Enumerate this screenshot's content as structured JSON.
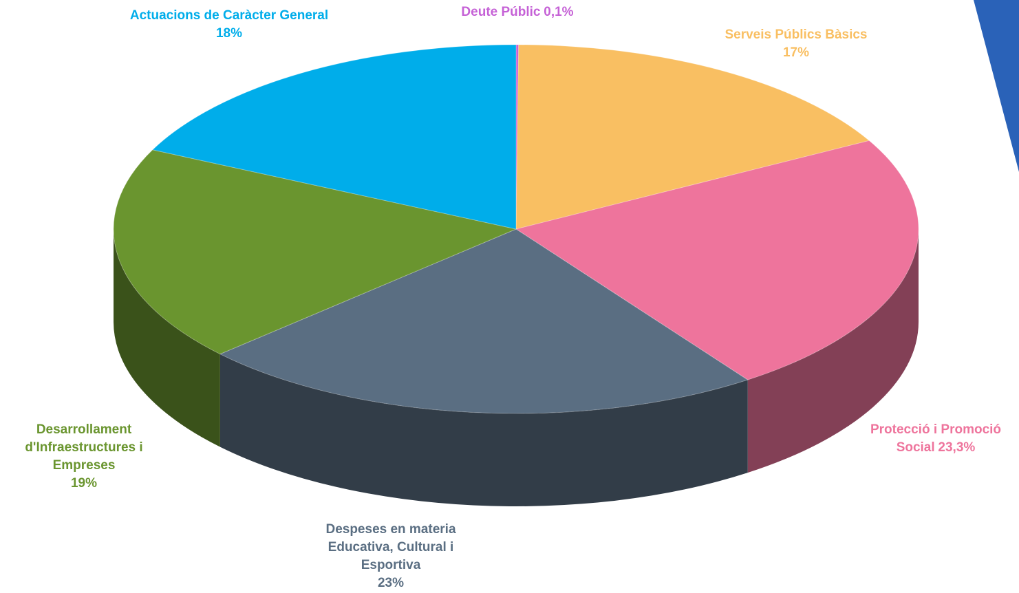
{
  "chart_data": {
    "type": "pie3d",
    "categories": [
      "Deute Públic",
      "Serveis Públics Bàsics",
      "Protecció i Promoció Social",
      "Despeses en materia Educativa, Cultural i Esportiva",
      "Desarrollament d'Infraestructures i Empreses",
      "Actuacions de Caràcter General"
    ],
    "values": [
      0.1,
      17,
      23.3,
      23,
      19,
      18
    ],
    "value_labels": [
      "0,1%",
      "17%",
      "23,3%",
      "23%",
      "19%",
      "18%"
    ],
    "colors": [
      "#c561d6",
      "#f9bf62",
      "#ee749c",
      "#5a6e82",
      "#6a952f",
      "#00adea"
    ]
  }
}
